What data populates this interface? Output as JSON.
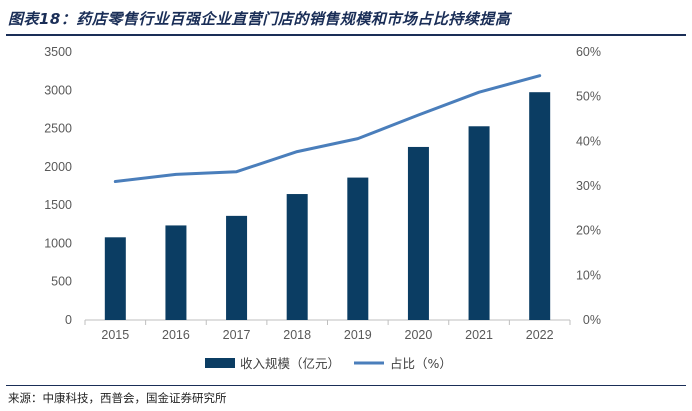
{
  "title": "图表18：药店零售行业百强企业直营门店的销售规模和市场占比持续提高",
  "source": "来源：中康科技，西普会，国金证券研究所",
  "colors": {
    "bar": "#0b3d63",
    "line": "#4a7ebb",
    "axis": "#bfbfbf",
    "text": "#595959",
    "title": "#1a2e57"
  },
  "chart_data": {
    "type": "bar",
    "categories": [
      "2015",
      "2016",
      "2017",
      "2018",
      "2019",
      "2020",
      "2021",
      "2022"
    ],
    "series": [
      {
        "name": "收入规模（亿元）",
        "type": "bar",
        "axis": "left",
        "values": [
          1080,
          1235,
          1360,
          1645,
          1860,
          2260,
          2530,
          2975
        ]
      },
      {
        "name": "占比（%）",
        "type": "line",
        "axis": "right",
        "values": [
          31.0,
          32.6,
          33.2,
          37.7,
          40.6,
          45.9,
          51.0,
          54.7
        ]
      }
    ],
    "y_left": {
      "min": 0,
      "max": 3500,
      "ticks": [
        "0",
        "500",
        "1000",
        "1500",
        "2000",
        "2500",
        "3000",
        "3500"
      ]
    },
    "y_right": {
      "min": 0,
      "max": 60,
      "ticks": [
        "0%",
        "10%",
        "20%",
        "30%",
        "40%",
        "50%",
        "60%"
      ]
    },
    "grid": false,
    "legend_position": "bottom"
  }
}
